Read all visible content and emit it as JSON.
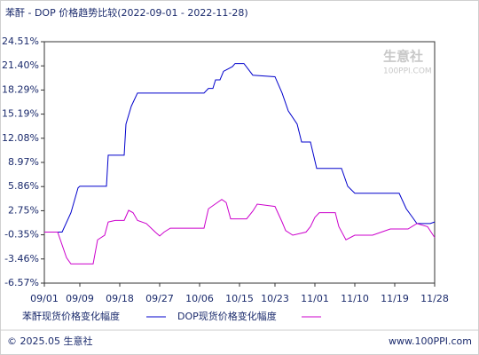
{
  "chart_data": {
    "type": "line",
    "title": "苯酐 - DOP 价格趋势比较(2022-09-01 - 2022-11-28)",
    "watermark": [
      "生意社",
      "100PPI.COM"
    ],
    "footer_left": "© 2025.05 生意社",
    "footer_right": "www.100PPI.com",
    "xlim": [
      0,
      88
    ],
    "xticks": [
      {
        "value": 0,
        "label": "09/01"
      },
      {
        "value": 8,
        "label": "09/09"
      },
      {
        "value": 17,
        "label": "09/18"
      },
      {
        "value": 26,
        "label": "09/27"
      },
      {
        "value": 35,
        "label": "10/06"
      },
      {
        "value": 44,
        "label": "10/15"
      },
      {
        "value": 52,
        "label": "10/23"
      },
      {
        "value": 61,
        "label": "11/01"
      },
      {
        "value": 70,
        "label": "11/10"
      },
      {
        "value": 79,
        "label": "11/19"
      },
      {
        "value": 88,
        "label": "11/28"
      }
    ],
    "ylim": [
      -6.57,
      24.51
    ],
    "yticks": [
      {
        "value": -6.57,
        "label": "-6.57%"
      },
      {
        "value": -3.46,
        "label": "-3.46%"
      },
      {
        "value": -0.35,
        "label": "-0.35%"
      },
      {
        "value": 2.75,
        "label": "2.75%"
      },
      {
        "value": 5.86,
        "label": "5.86%"
      },
      {
        "value": 8.97,
        "label": "8.97%"
      },
      {
        "value": 12.08,
        "label": "12.08%"
      },
      {
        "value": 15.19,
        "label": "15.19%"
      },
      {
        "value": 18.29,
        "label": "18.29%"
      },
      {
        "value": 21.4,
        "label": "21.40%"
      },
      {
        "value": 24.51,
        "label": "24.51%"
      }
    ],
    "series": [
      {
        "name": "苯酐现货价格变化幅度",
        "color": "#0000cc",
        "x": [
          0,
          4,
          6,
          7.6,
          8,
          14,
          14.4,
          18,
          18.4,
          19.6,
          21,
          36,
          37,
          38,
          38.6,
          39.6,
          40.4,
          42.4,
          43,
          45,
          47,
          52,
          53.6,
          55,
          57,
          58,
          60,
          61.4,
          67,
          68.4,
          70,
          80,
          81.6,
          83,
          84,
          87,
          88
        ],
        "values": [
          0,
          0,
          2.5,
          5.7,
          5.9,
          5.9,
          9.9,
          9.9,
          13.9,
          16.2,
          17.9,
          17.9,
          18.5,
          18.5,
          19.6,
          19.6,
          20.7,
          21.3,
          21.7,
          21.7,
          20.2,
          20.0,
          17.9,
          15.6,
          13.9,
          11.6,
          11.6,
          8.2,
          8.2,
          5.9,
          5.0,
          5.0,
          3.0,
          1.9,
          1.1,
          1.1,
          1.3
        ]
      },
      {
        "name": "DOP现货价格变化幅度",
        "color": "#cc00cc",
        "x": [
          0,
          3,
          5,
          6,
          11,
          12,
          13.6,
          14.4,
          16,
          18,
          19,
          20,
          21,
          23,
          25,
          26,
          27,
          28.4,
          36,
          37,
          39,
          40,
          41,
          42,
          45.6,
          47,
          48,
          52,
          53.6,
          54.4,
          56,
          59,
          60,
          61,
          62,
          65.6,
          66.4,
          68,
          70,
          74,
          76,
          78,
          82,
          84,
          86.4,
          88
        ],
        "values": [
          0,
          0,
          -3.3,
          -4.1,
          -4.1,
          -1.0,
          -0.4,
          1.3,
          1.5,
          1.5,
          2.8,
          2.5,
          1.5,
          1.1,
          0,
          -0.5,
          0,
          0.5,
          0.5,
          3.0,
          3.8,
          4.2,
          3.8,
          1.7,
          1.7,
          2.7,
          3.6,
          3.3,
          1.3,
          0.2,
          -0.4,
          0,
          0.7,
          1.9,
          2.5,
          2.5,
          0.7,
          -1.0,
          -0.4,
          -0.4,
          0,
          0.4,
          0.4,
          1.1,
          0.7,
          -0.7
        ]
      }
    ]
  }
}
